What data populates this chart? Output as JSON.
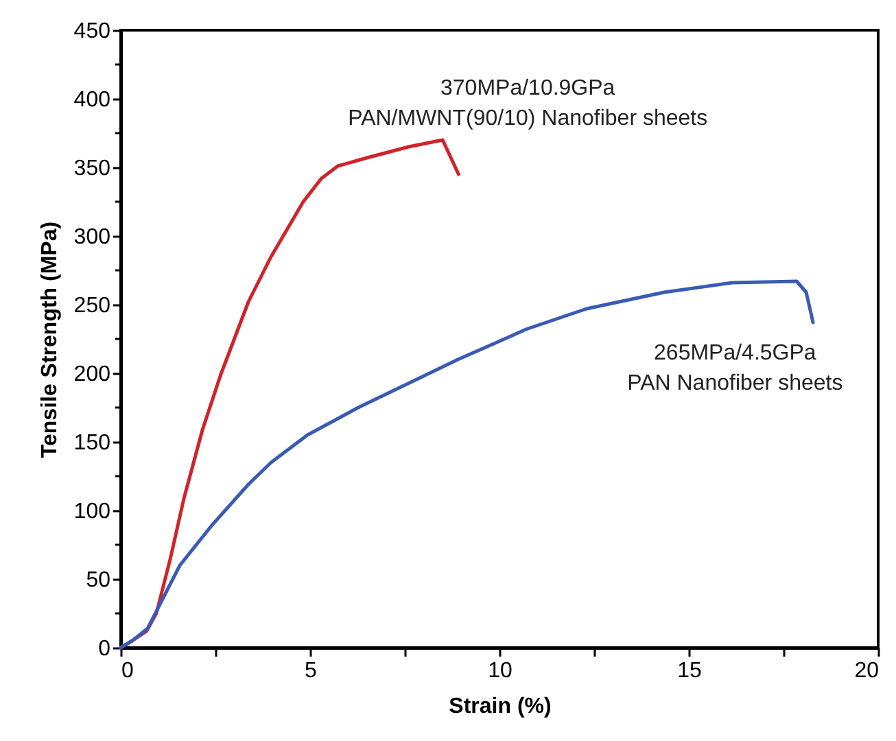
{
  "chart_data": {
    "type": "line",
    "xlabel": "Strain (%)",
    "ylabel": "Tensile Strength (MPa)",
    "xlim": [
      0,
      20
    ],
    "ylim": [
      0,
      450
    ],
    "xticks": [
      0,
      {
        "value": 2.5,
        "label": null
      },
      5,
      {
        "value": 7.5,
        "label": null
      },
      10,
      {
        "value": 12.5,
        "label": null
      },
      15,
      {
        "value": 17.5,
        "label": null
      },
      20
    ],
    "yticks": [
      0,
      {
        "value": 25,
        "label": null
      },
      50,
      {
        "value": 75,
        "label": null
      },
      100,
      {
        "value": 125,
        "label": null
      },
      150,
      {
        "value": 175,
        "label": null
      },
      200,
      {
        "value": 225,
        "label": null
      },
      250,
      {
        "value": 275,
        "label": null
      },
      300,
      {
        "value": 325,
        "label": null
      },
      350,
      {
        "value": 375,
        "label": null
      },
      400,
      {
        "value": 425,
        "label": null
      },
      450
    ],
    "grid": false,
    "line_style": "solid",
    "marker": "none",
    "series": [
      {
        "color": "#d2232a",
        "x": [
          0,
          0.3,
          0.68,
          0.94,
          1.31,
          1.67,
          2.16,
          2.64,
          3.37,
          3.97,
          4.82,
          5.3,
          5.73,
          6.5,
          7.6,
          8.5,
          8.92
        ],
        "values": [
          0,
          5,
          12,
          25,
          65,
          109,
          159,
          199,
          252,
          285,
          325,
          342,
          351,
          357,
          365,
          370,
          345
        ]
      },
      {
        "color": "#3a5bb5",
        "x": [
          0,
          0.3,
          0.71,
          1.56,
          2.4,
          3.37,
          3.97,
          4.93,
          6.27,
          7.7,
          8.9,
          9.89,
          10.7,
          12.3,
          14.35,
          16.15,
          17.85,
          18.1,
          18.28
        ],
        "values": [
          0,
          5,
          14,
          60,
          89,
          119,
          135,
          155,
          175,
          194,
          210,
          222,
          232,
          247,
          259,
          266,
          267,
          259,
          237
        ]
      }
    ],
    "annotations": [
      {
        "text": "370MPa/10.9GPa\nPAN/MWNT(90/10) Nanofiber sheets",
        "x": 8.5,
        "y": 370
      },
      {
        "text": "265MPa/4.5GPa\nPAN Nanofiber sheets",
        "x": 17.85,
        "y": 267
      }
    ]
  }
}
